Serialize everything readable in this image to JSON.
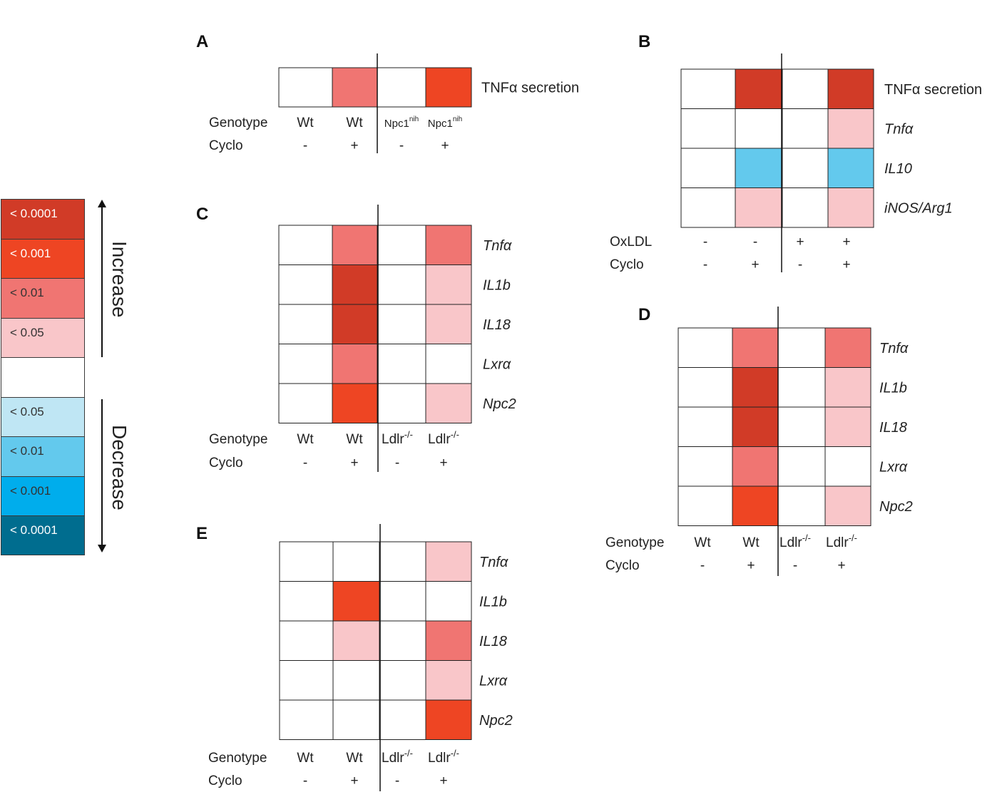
{
  "legend": {
    "items": [
      {
        "label": "< 0.0001",
        "color": "#d13b27",
        "text": "dark"
      },
      {
        "label": "< 0.001",
        "color": "#ee4523",
        "text": "dark"
      },
      {
        "label": "< 0.01",
        "color": "#f07572",
        "text": "light"
      },
      {
        "label": "< 0.05",
        "color": "#f9c6c9",
        "text": "light"
      },
      {
        "label": "",
        "color": "#ffffff",
        "text": "light"
      },
      {
        "label": "< 0.05",
        "color": "#bfe6f4",
        "text": "light"
      },
      {
        "label": "< 0.01",
        "color": "#63c9ed",
        "text": "light"
      },
      {
        "label": "< 0.001",
        "color": "#00adec",
        "text": "light"
      },
      {
        "label": "< 0.0001",
        "color": "#006d8f",
        "text": "dark"
      }
    ],
    "increase_label": "Increase",
    "decrease_label": "Decrease"
  },
  "chart_data": [
    {
      "panel": "A",
      "type": "heatmap",
      "columns": [
        "Wt",
        "Wt",
        "Npc1",
        "Npc1"
      ],
      "column_superscripts": [
        "",
        "",
        "nih",
        "nih"
      ],
      "row_factor_labels": [
        "Genotype",
        "Cyclo"
      ],
      "factor_values": [
        [
          "Wt",
          "Wt",
          "Npc1",
          "Npc1"
        ],
        [
          "-",
          "+",
          "-",
          "+"
        ]
      ],
      "rows": [
        {
          "name": "TNFα secretion",
          "italic": false,
          "levels": [
            0,
            2,
            0,
            3
          ]
        }
      ]
    },
    {
      "panel": "B",
      "type": "heatmap",
      "columns": [
        "",
        "",
        "",
        ""
      ],
      "row_factor_labels": [
        "OxLDL",
        "Cyclo"
      ],
      "factor_values": [
        [
          "-",
          "-",
          "+",
          "+"
        ],
        [
          "-",
          "+",
          "-",
          "+"
        ]
      ],
      "rows": [
        {
          "name": "TNFα secretion",
          "italic": false,
          "levels": [
            0,
            4,
            0,
            4
          ]
        },
        {
          "name": "Tnfα",
          "italic": true,
          "levels": [
            0,
            0,
            0,
            1
          ]
        },
        {
          "name": "IL10",
          "italic": true,
          "levels": [
            0,
            -2,
            0,
            -2
          ]
        },
        {
          "name": "iNOS/Arg1",
          "italic": true,
          "levels": [
            0,
            1,
            0,
            1
          ]
        }
      ]
    },
    {
      "panel": "C",
      "type": "heatmap",
      "row_factor_labels": [
        "Genotype",
        "Cyclo"
      ],
      "factor_values": [
        [
          "Wt",
          "Wt",
          "Ldlr",
          "Ldlr"
        ],
        [
          "-",
          "+",
          "-",
          "+"
        ]
      ],
      "column_superscripts": [
        "",
        "",
        "-/-",
        "-/-"
      ],
      "rows": [
        {
          "name": "Tnfα",
          "italic": true,
          "levels": [
            0,
            2,
            0,
            2
          ]
        },
        {
          "name": "IL1b",
          "italic": true,
          "levels": [
            0,
            4,
            0,
            1
          ]
        },
        {
          "name": "IL18",
          "italic": true,
          "levels": [
            0,
            4,
            0,
            1
          ]
        },
        {
          "name": "Lxrα",
          "italic": true,
          "levels": [
            0,
            2,
            0,
            0
          ]
        },
        {
          "name": "Npc2",
          "italic": true,
          "levels": [
            0,
            3,
            0,
            1
          ]
        }
      ]
    },
    {
      "panel": "D",
      "type": "heatmap",
      "row_factor_labels": [
        "Genotype",
        "Cyclo"
      ],
      "factor_values": [
        [
          "Wt",
          "Wt",
          "Ldlr",
          "Ldlr"
        ],
        [
          "-",
          "+",
          "-",
          "+"
        ]
      ],
      "column_superscripts": [
        "",
        "",
        "-/-",
        "-/-"
      ],
      "rows": [
        {
          "name": "Tnfα",
          "italic": true,
          "levels": [
            0,
            2,
            0,
            2
          ]
        },
        {
          "name": "IL1b",
          "italic": true,
          "levels": [
            0,
            4,
            0,
            1
          ]
        },
        {
          "name": "IL18",
          "italic": true,
          "levels": [
            0,
            4,
            0,
            1
          ]
        },
        {
          "name": "Lxrα",
          "italic": true,
          "levels": [
            0,
            2,
            0,
            0
          ]
        },
        {
          "name": "Npc2",
          "italic": true,
          "levels": [
            0,
            3,
            0,
            1
          ]
        }
      ]
    },
    {
      "panel": "E",
      "type": "heatmap",
      "row_factor_labels": [
        "Genotype",
        "Cyclo"
      ],
      "factor_values": [
        [
          "Wt",
          "Wt",
          "Ldlr",
          "Ldlr"
        ],
        [
          "-",
          "+",
          "-",
          "+"
        ]
      ],
      "column_superscripts": [
        "",
        "",
        "-/-",
        "-/-"
      ],
      "rows": [
        {
          "name": "Tnfα",
          "italic": true,
          "levels": [
            0,
            0,
            0,
            1
          ]
        },
        {
          "name": "IL1b",
          "italic": true,
          "levels": [
            0,
            3,
            0,
            0
          ]
        },
        {
          "name": "IL18",
          "italic": true,
          "levels": [
            0,
            1,
            0,
            2
          ]
        },
        {
          "name": "Lxrα",
          "italic": true,
          "levels": [
            0,
            0,
            0,
            1
          ]
        },
        {
          "name": "Npc2",
          "italic": true,
          "levels": [
            0,
            0,
            0,
            3
          ]
        }
      ]
    }
  ],
  "level_colors": {
    "4": "#d13b27",
    "3": "#ee4523",
    "2": "#f07572",
    "1": "#f9c6c9",
    "0": "#ffffff",
    "-1": "#bfe6f4",
    "-2": "#63c9ed",
    "-3": "#00adec",
    "-4": "#006d8f"
  }
}
